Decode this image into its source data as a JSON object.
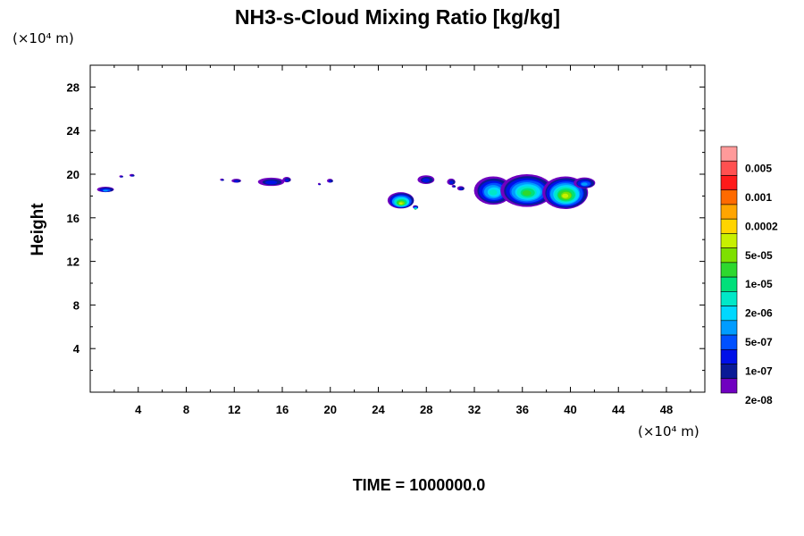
{
  "chart_data": {
    "type": "contour",
    "title": "NH3-s-Cloud Mixing Ratio [kg/kg]",
    "xlabel": "",
    "x_unit": "(×10⁴ m)",
    "ylabel": "Height",
    "y_unit": "(×10⁴ m)",
    "xlim": [
      0,
      51.2
    ],
    "ylim": [
      0,
      30
    ],
    "x_ticks": [
      4,
      8,
      12,
      16,
      20,
      24,
      28,
      32,
      36,
      40,
      44,
      48
    ],
    "y_ticks": [
      4,
      8,
      12,
      16,
      20,
      24,
      28
    ],
    "time_label": "TIME = 1000000.0",
    "colorbar": {
      "labels": [
        "0.005",
        "0.001",
        "0.0002",
        "5e-05",
        "1e-05",
        "2e-06",
        "5e-07",
        "1e-07",
        "2e-08"
      ],
      "colors": [
        "#ff9a9a",
        "#ff5050",
        "#ff1a1a",
        "#ff6a00",
        "#ffa500",
        "#ffd400",
        "#c8f000",
        "#7ee000",
        "#2ed82e",
        "#00e07a",
        "#00e8c8",
        "#00d8ff",
        "#009cff",
        "#0050ff",
        "#0010e8",
        "#0a1a96",
        "#7000c0"
      ]
    },
    "cloud_patches": [
      {
        "x": 1.3,
        "y": 18.6,
        "rx": 0.7,
        "ry": 0.25,
        "level": 1
      },
      {
        "x": 2.6,
        "y": 19.8,
        "rx": 0.15,
        "ry": 0.1,
        "level": 0
      },
      {
        "x": 3.5,
        "y": 19.9,
        "rx": 0.2,
        "ry": 0.12,
        "level": 0
      },
      {
        "x": 11.0,
        "y": 19.5,
        "rx": 0.15,
        "ry": 0.1,
        "level": 0
      },
      {
        "x": 12.2,
        "y": 19.4,
        "rx": 0.4,
        "ry": 0.18,
        "level": 0
      },
      {
        "x": 15.1,
        "y": 19.3,
        "rx": 1.1,
        "ry": 0.38,
        "level": 0
      },
      {
        "x": 16.4,
        "y": 19.5,
        "rx": 0.35,
        "ry": 0.25,
        "level": 0
      },
      {
        "x": 19.1,
        "y": 19.1,
        "rx": 0.1,
        "ry": 0.1,
        "level": 0
      },
      {
        "x": 20.0,
        "y": 19.4,
        "rx": 0.25,
        "ry": 0.18,
        "level": 0
      },
      {
        "x": 25.9,
        "y": 17.6,
        "rx": 1.1,
        "ry": 0.75,
        "level": 4
      },
      {
        "x": 27.1,
        "y": 17.0,
        "rx": 0.2,
        "ry": 0.15,
        "level": 3
      },
      {
        "x": 28.0,
        "y": 19.5,
        "rx": 0.7,
        "ry": 0.4,
        "level": 0
      },
      {
        "x": 30.1,
        "y": 19.3,
        "rx": 0.35,
        "ry": 0.3,
        "level": 0
      },
      {
        "x": 30.3,
        "y": 18.9,
        "rx": 0.15,
        "ry": 0.12,
        "level": 0
      },
      {
        "x": 30.9,
        "y": 18.7,
        "rx": 0.3,
        "ry": 0.2,
        "level": 0
      },
      {
        "x": 33.6,
        "y": 18.5,
        "rx": 1.6,
        "ry": 1.3,
        "level": 2
      },
      {
        "x": 36.4,
        "y": 18.5,
        "rx": 2.2,
        "ry": 1.5,
        "level": 3
      },
      {
        "x": 39.6,
        "y": 18.3,
        "rx": 1.9,
        "ry": 1.5,
        "level": 4
      },
      {
        "x": 41.2,
        "y": 19.2,
        "rx": 0.9,
        "ry": 0.5,
        "level": 1
      }
    ]
  }
}
